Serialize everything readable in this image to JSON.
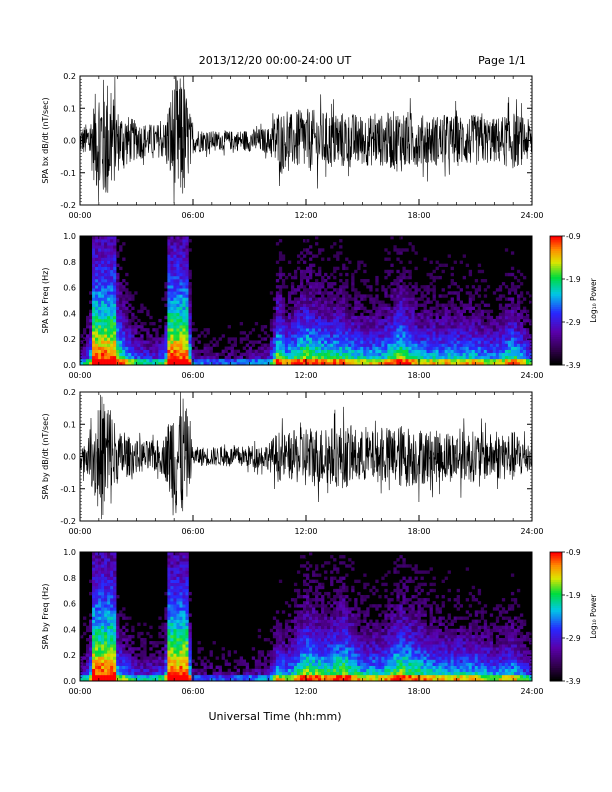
{
  "header": {
    "title": "2013/12/20  00:00-24:00 UT",
    "page": "Page 1/1"
  },
  "footer": {
    "xlabel": "Universal Time (hh:mm)"
  },
  "colorbar": {
    "label": "Log₁₀ Power",
    "ticks": [
      "-0.9",
      "-1.9",
      "-2.9",
      "-3.9"
    ]
  },
  "chart_data": [
    {
      "type": "line",
      "ylabel": "SPA bx dB/dt (nT/sec)",
      "xlim": [
        0,
        24
      ],
      "ylim": [
        -0.2,
        0.2
      ],
      "yticks": [
        "0.2",
        "0.1",
        "0.0",
        "-0.1",
        "-0.2"
      ],
      "xticks": [
        "00:00",
        "06:00",
        "12:00",
        "18:00",
        "24:00"
      ],
      "envelope_hours": [
        0,
        0.5,
        1,
        1.5,
        2,
        3,
        4,
        4.5,
        5,
        5.5,
        6,
        7,
        8,
        9,
        10,
        10.5,
        11,
        12,
        13,
        14,
        15,
        16,
        17,
        18,
        19,
        20,
        21,
        22,
        23,
        24
      ],
      "envelope_amplitude": [
        0.04,
        0.06,
        0.2,
        0.2,
        0.1,
        0.06,
        0.05,
        0.06,
        0.2,
        0.2,
        0.04,
        0.03,
        0.03,
        0.035,
        0.04,
        0.1,
        0.08,
        0.1,
        0.09,
        0.09,
        0.08,
        0.08,
        0.1,
        0.08,
        0.08,
        0.08,
        0.08,
        0.07,
        0.09,
        0.06
      ]
    },
    {
      "type": "heatmap",
      "ylabel": "SPA bx Freq (Hz)",
      "xlim": [
        0,
        24
      ],
      "ylim": [
        0,
        1.0
      ],
      "yticks": [
        "1.0",
        "0.8",
        "0.6",
        "0.4",
        "0.2",
        "0.0"
      ],
      "xticks": [
        "00:00",
        "06:00",
        "12:00",
        "18:00",
        "24:00"
      ],
      "zlim": [
        -3.9,
        -0.9
      ],
      "zlabel": "Log₁₀ Power"
    },
    {
      "type": "line",
      "ylabel": "SPA by dB/dt (nT/sec)",
      "xlim": [
        0,
        24
      ],
      "ylim": [
        -0.2,
        0.2
      ],
      "yticks": [
        "0.2",
        "0.1",
        "0.0",
        "-0.1",
        "-0.2"
      ],
      "xticks": [
        "00:00",
        "06:00",
        "12:00",
        "18:00",
        "24:00"
      ],
      "envelope_hours": [
        0,
        0.5,
        1,
        1.5,
        2,
        3,
        4,
        4.5,
        5,
        5.5,
        6,
        7,
        8,
        9,
        10,
        10.5,
        11,
        12,
        13,
        14,
        15,
        16,
        17,
        18,
        19,
        20,
        21,
        22,
        23,
        24
      ],
      "envelope_amplitude": [
        0.04,
        0.06,
        0.2,
        0.2,
        0.08,
        0.05,
        0.05,
        0.06,
        0.2,
        0.2,
        0.03,
        0.03,
        0.03,
        0.035,
        0.04,
        0.08,
        0.07,
        0.1,
        0.09,
        0.1,
        0.08,
        0.08,
        0.1,
        0.09,
        0.08,
        0.08,
        0.08,
        0.07,
        0.08,
        0.05
      ]
    },
    {
      "type": "heatmap",
      "ylabel": "SPA by Freq (Hz)",
      "xlim": [
        0,
        24
      ],
      "ylim": [
        0,
        1.0
      ],
      "yticks": [
        "1.0",
        "0.8",
        "0.6",
        "0.4",
        "0.2",
        "0.0"
      ],
      "xticks": [
        "00:00",
        "06:00",
        "12:00",
        "18:00",
        "24:00"
      ],
      "zlim": [
        -3.9,
        -0.9
      ],
      "zlabel": "Log₁₀ Power"
    }
  ]
}
